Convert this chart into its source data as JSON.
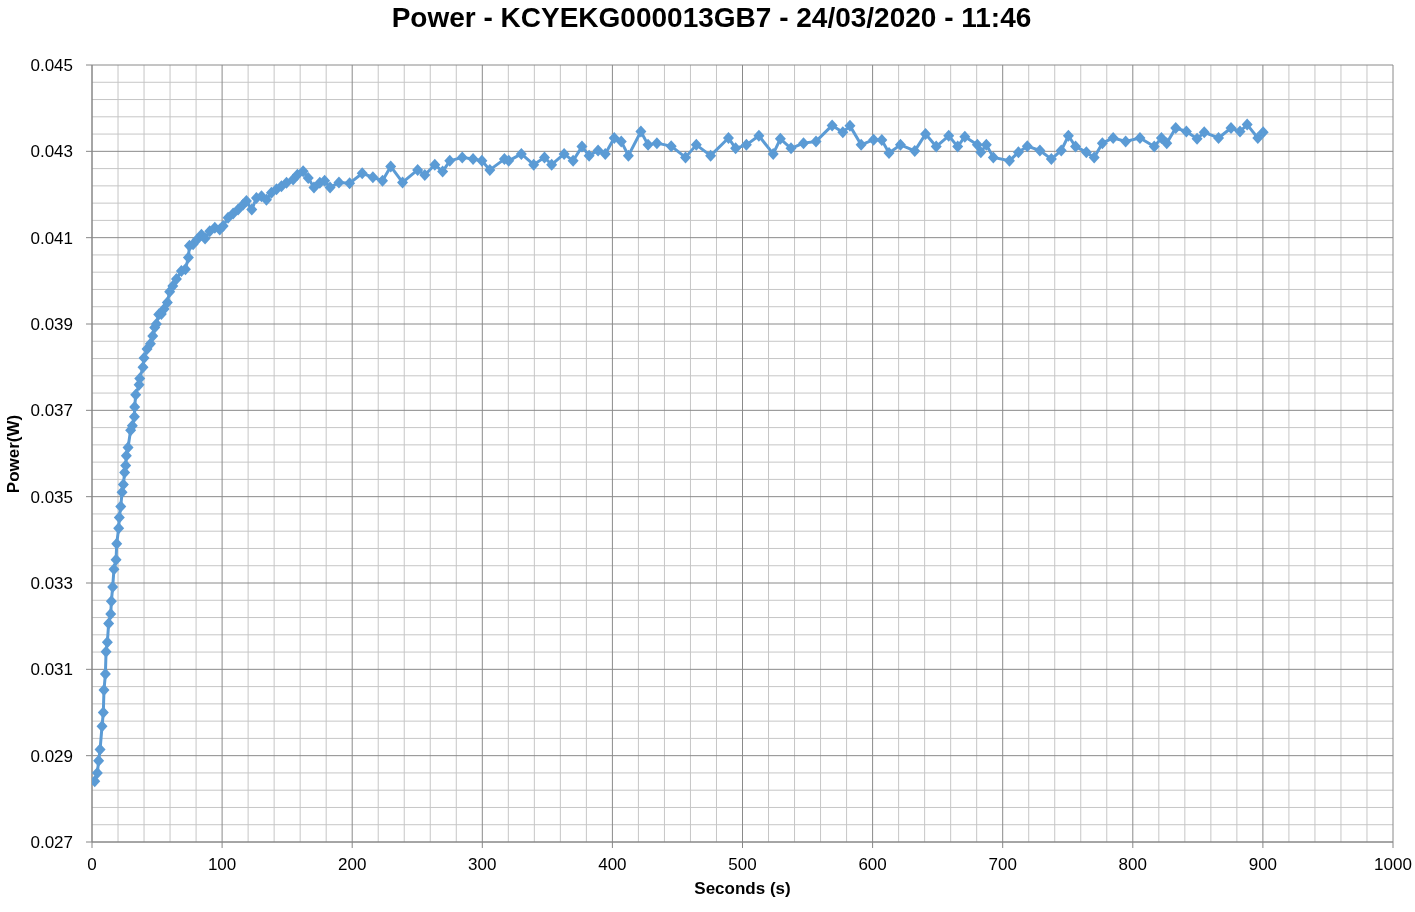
{
  "chart_data": {
    "type": "line",
    "title": "Power - KCYEKG000013GB7 - 24/03/2020 - 11:46",
    "xlabel": "Seconds (s)",
    "ylabel": "Power(W)",
    "x": [
      2.1,
      4.1,
      5.1,
      6.2,
      7.7,
      8.7,
      9.2,
      10.3,
      10.8,
      11.8,
      12.8,
      14.4,
      14.9,
      15.9,
      16.9,
      18.5,
      19.0,
      20.5,
      21.0,
      22.1,
      23.1,
      24.1,
      25.1,
      25.9,
      26.4,
      27.7,
      29.7,
      31.0,
      32.6,
      32.8,
      33.6,
      36.2,
      36.7,
      39.2,
      40.0,
      42.3,
      44.9,
      46.7,
      48.2,
      49.5,
      51.3,
      53.3,
      55.4,
      57.9,
      59.7,
      62.1,
      64.9,
      68.7,
      71.8,
      74.1,
      74.9,
      77.7,
      80.8,
      84.1,
      86.9,
      90.5,
      94.4,
      98.2,
      100.8,
      104.6,
      108.5,
      112.3,
      116.2,
      118.7,
      122.8,
      126.4,
      130.3,
      134.1,
      137.9,
      141.8,
      145.6,
      149.5,
      154.6,
      157.9,
      162.3,
      166.2,
      170.6,
      175.1,
      178.8,
      183.0,
      189.8,
      198.0,
      207.7,
      215.9,
      223.3,
      229.6,
      238.7,
      250.3,
      255.8,
      263.5,
      269.5,
      275.0,
      284.6,
      292.9,
      299.7,
      305.8,
      317.0,
      320.3,
      330.0,
      339.5,
      347.8,
      353.3,
      362.9,
      369.8,
      376.6,
      382.1,
      389.0,
      394.5,
      401.4,
      406.8,
      412.3,
      421.9,
      427.4,
      434.2,
      445.2,
      456.2,
      464.5,
      475.5,
      489.2,
      494.7,
      503.0,
      512.6,
      523.6,
      529.1,
      537.3,
      546.9,
      556.5,
      568.9,
      577.1,
      582.6,
      591.2,
      600.8,
      607.1,
      612.6,
      621.4,
      632.4,
      640.7,
      648.9,
      658.5,
      665.4,
      670.9,
      680.5,
      683.2,
      687.4,
      692.8,
      705.2,
      712.1,
      718.9,
      728.6,
      737.4,
      745.0,
      750.5,
      756.0,
      764.3,
      770.3,
      776.6,
      784.9,
      794.5,
      805.5,
      816.5,
      822.0,
      826.1,
      833.0,
      841.2,
      849.4,
      854.9,
      865.9,
      875.5,
      882.4,
      887.9,
      896.1,
      900.2
    ],
    "series": [
      {
        "color": "#5b9bd5",
        "values": [
          0.02841,
          0.0286,
          0.02888,
          0.02914,
          0.02968,
          0.03,
          0.03052,
          0.03089,
          0.03141,
          0.03163,
          0.03206,
          0.03228,
          0.03258,
          0.03291,
          0.03332,
          0.03354,
          0.03391,
          0.03427,
          0.03452,
          0.03477,
          0.0351,
          0.03528,
          0.03556,
          0.03572,
          0.03595,
          0.03614,
          0.03654,
          0.03664,
          0.03685,
          0.03708,
          0.03736,
          0.03759,
          0.03774,
          0.038,
          0.03821,
          0.03842,
          0.03854,
          0.03872,
          0.03892,
          0.039,
          0.03922,
          0.03923,
          0.03935,
          0.0395,
          0.03975,
          0.03988,
          0.04004,
          0.04023,
          0.04027,
          0.04054,
          0.04081,
          0.04085,
          0.04096,
          0.04107,
          0.04098,
          0.04115,
          0.04123,
          0.04119,
          0.04127,
          0.04146,
          0.04156,
          0.04165,
          0.04177,
          0.04185,
          0.04165,
          0.04192,
          0.04196,
          0.04188,
          0.04204,
          0.04212,
          0.04219,
          0.04227,
          0.04235,
          0.04246,
          0.04254,
          0.04238,
          0.04216,
          0.04227,
          0.04232,
          0.04216,
          0.04228,
          0.04226,
          0.04249,
          0.0424,
          0.04232,
          0.04265,
          0.04228,
          0.04257,
          0.04245,
          0.04269,
          0.04253,
          0.04278,
          0.04286,
          0.04282,
          0.04278,
          0.04257,
          0.04282,
          0.04278,
          0.04294,
          0.04269,
          0.04286,
          0.04269,
          0.04294,
          0.04278,
          0.04311,
          0.0429,
          0.04302,
          0.04294,
          0.04331,
          0.04323,
          0.0429,
          0.04346,
          0.04315,
          0.04319,
          0.04312,
          0.04286,
          0.04315,
          0.0429,
          0.04331,
          0.04307,
          0.04315,
          0.04336,
          0.04294,
          0.04329,
          0.04307,
          0.04319,
          0.04323,
          0.0436,
          0.04344,
          0.04359,
          0.04315,
          0.04327,
          0.04326,
          0.04296,
          0.04315,
          0.04301,
          0.0434,
          0.04311,
          0.04336,
          0.04311,
          0.04334,
          0.04315,
          0.04298,
          0.04315,
          0.04286,
          0.04278,
          0.04298,
          0.04312,
          0.04302,
          0.04282,
          0.04302,
          0.04336,
          0.04311,
          0.04298,
          0.04286,
          0.04319,
          0.04331,
          0.04323,
          0.04331,
          0.04311,
          0.04331,
          0.04319,
          0.04354,
          0.04346,
          0.04329,
          0.04344,
          0.04331,
          0.04354,
          0.04346,
          0.04362,
          0.04331,
          0.04344
        ]
      }
    ],
    "xlim": [
      0,
      1000
    ],
    "xticks": [
      0,
      {
        "value": 20,
        "label": null
      },
      {
        "value": 40,
        "label": null
      },
      {
        "value": 60,
        "label": null
      },
      {
        "value": 80,
        "label": null
      },
      100,
      {
        "value": 120,
        "label": null
      },
      {
        "value": 140,
        "label": null
      },
      {
        "value": 160,
        "label": null
      },
      {
        "value": 180,
        "label": null
      },
      200,
      {
        "value": 220,
        "label": null
      },
      {
        "value": 240,
        "label": null
      },
      {
        "value": 260,
        "label": null
      },
      {
        "value": 280,
        "label": null
      },
      300,
      {
        "value": 320,
        "label": null
      },
      {
        "value": 340,
        "label": null
      },
      {
        "value": 360,
        "label": null
      },
      {
        "value": 380,
        "label": null
      },
      400,
      {
        "value": 420,
        "label": null
      },
      {
        "value": 440,
        "label": null
      },
      {
        "value": 460,
        "label": null
      },
      {
        "value": 480,
        "label": null
      },
      500,
      {
        "value": 520,
        "label": null
      },
      {
        "value": 540,
        "label": null
      },
      {
        "value": 560,
        "label": null
      },
      {
        "value": 580,
        "label": null
      },
      600,
      {
        "value": 620,
        "label": null
      },
      {
        "value": 640,
        "label": null
      },
      {
        "value": 660,
        "label": null
      },
      {
        "value": 680,
        "label": null
      },
      700,
      {
        "value": 720,
        "label": null
      },
      {
        "value": 740,
        "label": null
      },
      {
        "value": 760,
        "label": null
      },
      {
        "value": 780,
        "label": null
      },
      800,
      {
        "value": 820,
        "label": null
      },
      {
        "value": 840,
        "label": null
      },
      {
        "value": 860,
        "label": null
      },
      {
        "value": 880,
        "label": null
      },
      900,
      {
        "value": 920,
        "label": null
      },
      {
        "value": 940,
        "label": null
      },
      {
        "value": 960,
        "label": null
      },
      {
        "value": 980,
        "label": null
      },
      1000
    ],
    "ylim": [
      0.027,
      0.045
    ],
    "yticks": [
      0.027,
      {
        "value": 0.0274,
        "label": null
      },
      {
        "value": 0.0278,
        "label": null
      },
      {
        "value": 0.0282,
        "label": null
      },
      {
        "value": 0.0286,
        "label": null
      },
      0.029,
      {
        "value": 0.0294,
        "label": null
      },
      {
        "value": 0.0298,
        "label": null
      },
      {
        "value": 0.0302,
        "label": null
      },
      {
        "value": 0.0306,
        "label": null
      },
      0.031,
      {
        "value": 0.0314,
        "label": null
      },
      {
        "value": 0.0318,
        "label": null
      },
      {
        "value": 0.0322,
        "label": null
      },
      {
        "value": 0.0326,
        "label": null
      },
      0.033,
      {
        "value": 0.0334,
        "label": null
      },
      {
        "value": 0.0338,
        "label": null
      },
      {
        "value": 0.0342,
        "label": null
      },
      {
        "value": 0.0346,
        "label": null
      },
      0.035,
      {
        "value": 0.0354,
        "label": null
      },
      {
        "value": 0.0358,
        "label": null
      },
      {
        "value": 0.0362,
        "label": null
      },
      {
        "value": 0.0366,
        "label": null
      },
      0.037,
      {
        "value": 0.0374,
        "label": null
      },
      {
        "value": 0.0378,
        "label": null
      },
      {
        "value": 0.0382,
        "label": null
      },
      {
        "value": 0.0386,
        "label": null
      },
      0.039,
      {
        "value": 0.0394,
        "label": null
      },
      {
        "value": 0.0398,
        "label": null
      },
      {
        "value": 0.0402,
        "label": null
      },
      {
        "value": 0.0406,
        "label": null
      },
      0.041,
      {
        "value": 0.0414,
        "label": null
      },
      {
        "value": 0.0418,
        "label": null
      },
      {
        "value": 0.0422,
        "label": null
      },
      {
        "value": 0.0426,
        "label": null
      },
      0.043,
      {
        "value": 0.0434,
        "label": null
      },
      {
        "value": 0.0438,
        "label": null
      },
      {
        "value": 0.0442,
        "label": null
      },
      {
        "value": 0.0446,
        "label": null
      },
      0.045
    ],
    "grid": true,
    "marker": "diamond",
    "line_style": "solid"
  }
}
